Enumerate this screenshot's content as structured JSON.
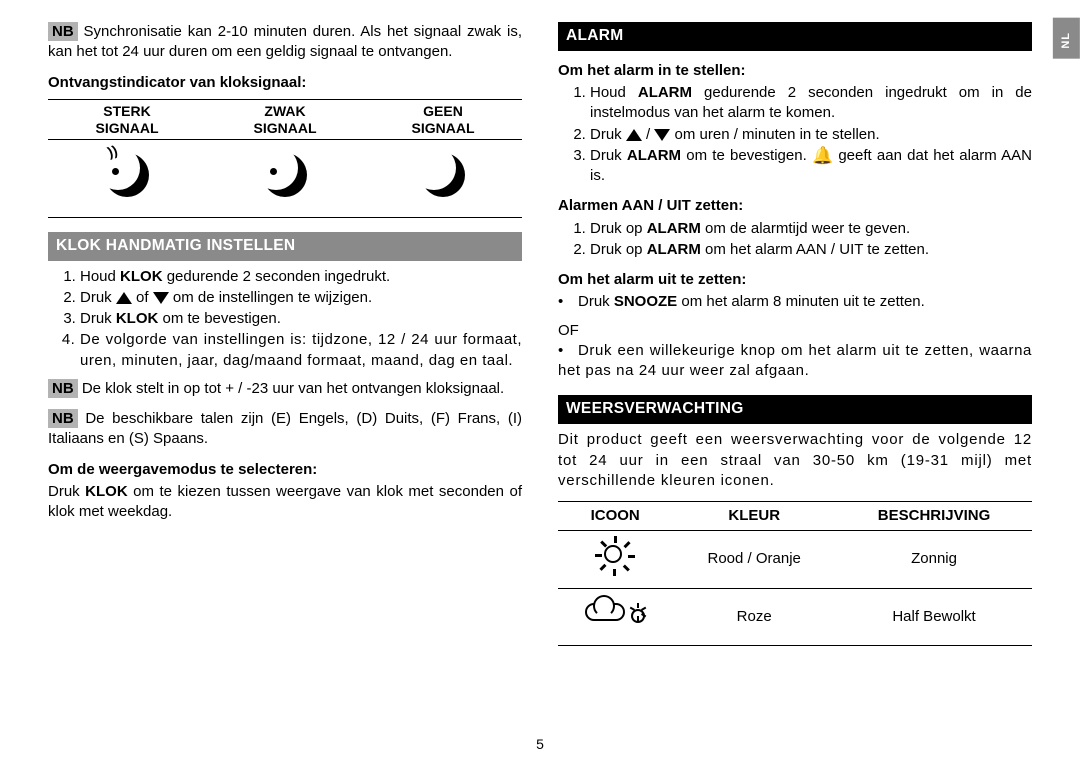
{
  "lang_tab": "NL",
  "page_number": "5",
  "left": {
    "nb_label": "NB",
    "intro_para": " Synchronisatie kan 2-10 minuten duren. Als het signaal zwak is, kan het tot 24 uur duren om een geldig signaal te ontvangen.",
    "indicator_heading": "Ontvangstindicator van kloksignaal:",
    "signal_table": {
      "headers": [
        "STERK SIGNAAL",
        "ZWAK SIGNAAL",
        "GEEN SIGNAAL"
      ]
    },
    "section_klok": "KLOK HANDMATIG INSTELLEN",
    "klok_steps": [
      {
        "pre": "Houd ",
        "b": "KLOK",
        "post": " gedurende 2 seconden ingedrukt."
      },
      {
        "pre": "Druk ",
        "arrows": true,
        "mid": " of ",
        "post": " om de instellingen te wijzigen."
      },
      {
        "pre": "Druk ",
        "b": "KLOK",
        "post": " om te bevestigen."
      },
      {
        "pre": "De volgorde van instellingen is: tijdzone, 12 / 24 uur formaat, uren, minuten, jaar, dag/maand formaat, maand, dag en taal."
      }
    ],
    "nb2": " De klok stelt in op tot + / -23 uur van het ontvangen kloksignaal.",
    "nb3": " De beschikbare talen zijn (E) Engels, (D) Duits, (F) Frans, (I) Italiaans en (S) Spaans.",
    "display_mode_heading": "Om de weergavemodus te selecteren:",
    "display_mode_para_pre": "Druk ",
    "display_mode_para_b": "KLOK",
    "display_mode_para_post": " om te kiezen tussen weergave van klok met seconden of klok met weekdag."
  },
  "right": {
    "section_alarm": "ALARM",
    "alarm_set_heading": "Om het alarm in te stellen:",
    "alarm_set_steps": [
      {
        "pre": "Houd ",
        "b": "ALARM",
        "post": " gedurende 2 seconden ingedrukt om in de instelmodus van het alarm te komen."
      },
      {
        "pre": "Druk ",
        "arrows": true,
        "post": " om uren / minuten in te stellen."
      },
      {
        "pre": "Druk ",
        "b": "ALARM",
        "post": " om te bevestigen. ",
        "bell": true,
        "post2": " geeft aan dat het alarm AAN is."
      }
    ],
    "alarm_toggle_heading": "Alarmen AAN / UIT zetten:",
    "alarm_toggle_steps": [
      {
        "pre": "Druk op ",
        "b": "ALARM",
        "post": " om de alarmtijd weer te geven."
      },
      {
        "pre": "Druk op ",
        "b": "ALARM",
        "post": " om het alarm AAN / UIT te zetten."
      }
    ],
    "alarm_off_heading": "Om het alarm uit te zetten:",
    "alarm_off_bullets": [
      {
        "pre": "Druk ",
        "b": "SNOOZE",
        "post": " om het alarm 8 minuten uit te zetten."
      }
    ],
    "of_text": "OF",
    "alarm_off_bullet2": "Druk een willekeurige knop om het alarm uit te zetten, waarna het pas na 24 uur weer zal afgaan.",
    "section_weather": "WEERSVERWACHTING",
    "weather_para": "Dit product geeft een weersverwachting voor de volgende 12 tot 24 uur in een straal van 30-50 km (19-31 mijl) met verschillende kleuren iconen.",
    "weather_table": {
      "headers": [
        "ICOON",
        "KLEUR",
        "BESCHRIJVING"
      ],
      "rows": [
        {
          "icon": "sun",
          "color": "Rood / Oranje",
          "desc": "Zonnig"
        },
        {
          "icon": "cloud",
          "color": "Roze",
          "desc": "Half Bewolkt"
        }
      ]
    }
  }
}
